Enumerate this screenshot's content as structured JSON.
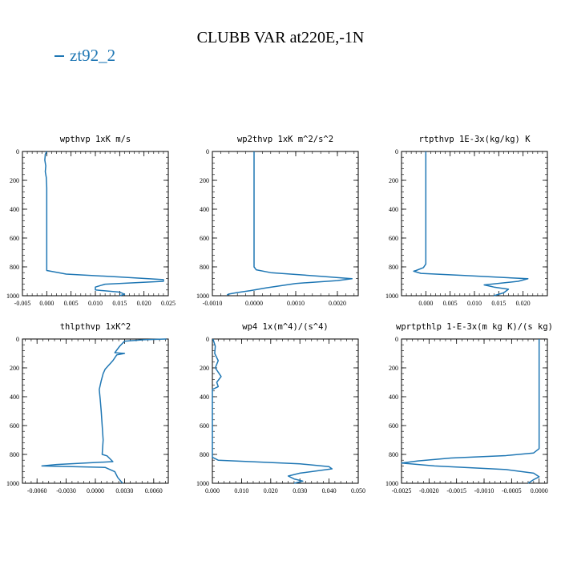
{
  "title": "CLUBB VAR at220E,-1N",
  "legend": {
    "label": "zt92_2",
    "color": "#1f77b4"
  },
  "chart_data": [
    {
      "type": "line",
      "title": "wpthvp  1xK m/s",
      "xlim": [
        -0.005,
        0.025
      ],
      "ylim": [
        1000,
        0
      ],
      "xticks": [
        -0.005,
        0.0,
        0.005,
        0.01,
        0.015,
        0.02,
        0.025
      ],
      "xtick_labels": [
        "-0.005",
        "0.000",
        "0.005",
        "0.010",
        "0.015",
        "0.020",
        "0.025"
      ],
      "yticks": [
        0,
        200,
        400,
        600,
        800,
        1000
      ],
      "ytick_labels": [
        "0",
        "200",
        "400",
        "600",
        "800",
        "1000"
      ],
      "series": [
        {
          "name": "zt92_2",
          "points": [
            [
              0.0,
              0
            ],
            [
              -0.0003,
              20
            ],
            [
              -0.0004,
              60
            ],
            [
              -0.0002,
              100
            ],
            [
              -0.0003,
              140
            ],
            [
              -0.0001,
              180
            ],
            [
              0.0,
              250
            ],
            [
              0.0,
              400
            ],
            [
              0.0,
              600
            ],
            [
              0.0,
              800
            ],
            [
              0.0,
              825
            ],
            [
              0.004,
              850
            ],
            [
              0.015,
              870
            ],
            [
              0.024,
              888
            ],
            [
              0.024,
              900
            ],
            [
              0.012,
              920
            ],
            [
              0.01,
              940
            ],
            [
              0.01,
              960
            ],
            [
              0.015,
              975
            ],
            [
              0.016,
              990
            ],
            [
              0.015,
              1000
            ]
          ]
        }
      ]
    },
    {
      "type": "line",
      "title": "wp2thvp  1xK m^2/s^2",
      "xlim": [
        -0.001,
        0.0025
      ],
      "ylim": [
        1000,
        0
      ],
      "xticks": [
        -0.001,
        0.0,
        0.001,
        0.002
      ],
      "xtick_labels": [
        "-0.0010",
        "0.0000",
        "0.0010",
        "0.0020"
      ],
      "yticks": [
        0,
        200,
        400,
        600,
        800,
        1000
      ],
      "ytick_labels": [
        "0",
        "200",
        "400",
        "600",
        "800",
        "1000"
      ],
      "series": [
        {
          "name": "zt92_2",
          "points": [
            [
              0.0,
              0
            ],
            [
              0.0,
              200
            ],
            [
              0.0,
              400
            ],
            [
              0.0,
              600
            ],
            [
              0.0,
              800
            ],
            [
              5e-05,
              820
            ],
            [
              0.0004,
              840
            ],
            [
              0.0016,
              865
            ],
            [
              0.00235,
              882
            ],
            [
              0.002,
              895
            ],
            [
              0.001,
              915
            ],
            [
              0.0003,
              945
            ],
            [
              -0.0001,
              965
            ],
            [
              -0.0004,
              978
            ],
            [
              -0.0006,
              988
            ],
            [
              -0.00065,
              995
            ]
          ]
        }
      ]
    },
    {
      "type": "line",
      "title": "rtpthvp  1E-3x(kg/kg) K",
      "xlim": [
        -0.005,
        0.025
      ],
      "ylim": [
        1000,
        0
      ],
      "xticks": [
        -0.005,
        0.0,
        0.005,
        0.01,
        0.015,
        0.02
      ],
      "xtick_labels": [
        "",
        "0.000",
        "0.005",
        "0.010",
        "0.015",
        "0.020"
      ],
      "yticks": [
        0,
        200,
        400,
        600,
        800,
        1000
      ],
      "ytick_labels": [
        "0",
        "200",
        "400",
        "600",
        "800",
        "1000"
      ],
      "series": [
        {
          "name": "zt92_2",
          "points": [
            [
              0.0,
              0
            ],
            [
              0.0,
              200
            ],
            [
              0.0,
              400
            ],
            [
              0.0,
              600
            ],
            [
              0.0,
              780
            ],
            [
              -0.0005,
              805
            ],
            [
              -0.002,
              825
            ],
            [
              -0.0025,
              830
            ],
            [
              -0.001,
              845
            ],
            [
              0.008,
              860
            ],
            [
              0.021,
              882
            ],
            [
              0.019,
              900
            ],
            [
              0.012,
              925
            ],
            [
              0.014,
              940
            ],
            [
              0.017,
              955
            ],
            [
              0.016,
              980
            ],
            [
              0.014,
              1000
            ]
          ]
        }
      ]
    },
    {
      "type": "line",
      "title": "thlpthvp  1xK^2",
      "xlim": [
        -0.0075,
        0.0075
      ],
      "ylim": [
        1000,
        0
      ],
      "xticks": [
        -0.006,
        -0.003,
        0.0,
        0.003,
        0.006
      ],
      "xtick_labels": [
        "-0.0060",
        "-0.0030",
        "0.0000",
        "0.0030",
        "0.0060"
      ],
      "yticks": [
        0,
        200,
        400,
        600,
        800,
        1000
      ],
      "ytick_labels": [
        "0",
        "200",
        "400",
        "600",
        "800",
        "1000"
      ],
      "series": [
        {
          "name": "zt92_2",
          "points": [
            [
              0.0073,
              0
            ],
            [
              0.005,
              5
            ],
            [
              0.003,
              15
            ],
            [
              0.0025,
              50
            ],
            [
              0.002,
              95
            ],
            [
              0.003,
              100
            ],
            [
              0.0022,
              110
            ],
            [
              0.0018,
              150
            ],
            [
              0.001,
              210
            ],
            [
              0.0008,
              240
            ],
            [
              0.0006,
              290
            ],
            [
              0.0004,
              350
            ],
            [
              0.0005,
              420
            ],
            [
              0.0006,
              500
            ],
            [
              0.0007,
              600
            ],
            [
              0.0008,
              700
            ],
            [
              0.0007,
              800
            ],
            [
              0.0012,
              810
            ],
            [
              0.0015,
              830
            ],
            [
              0.0018,
              850
            ],
            [
              -0.004,
              870
            ],
            [
              -0.0055,
              880
            ],
            [
              0.001,
              890
            ],
            [
              0.002,
              920
            ],
            [
              0.0023,
              960
            ],
            [
              0.0028,
              1000
            ]
          ]
        }
      ]
    },
    {
      "type": "line",
      "title": "wp4  1x(m^4)/(s^4)",
      "xlim": [
        0.0,
        0.05
      ],
      "ylim": [
        1000,
        0
      ],
      "xticks": [
        0.0,
        0.01,
        0.02,
        0.03,
        0.04,
        0.05
      ],
      "xtick_labels": [
        "0.000",
        "0.010",
        "0.020",
        "0.030",
        "0.040",
        "0.050"
      ],
      "yticks": [
        0,
        200,
        400,
        600,
        800,
        1000
      ],
      "ytick_labels": [
        "0",
        "200",
        "400",
        "600",
        "800",
        "1000"
      ],
      "series": [
        {
          "name": "zt92_2",
          "points": [
            [
              0.0002,
              0
            ],
            [
              0.001,
              50
            ],
            [
              0.0008,
              100
            ],
            [
              0.002,
              150
            ],
            [
              0.001,
              200
            ],
            [
              0.003,
              260
            ],
            [
              0.0015,
              300
            ],
            [
              0.002,
              330
            ],
            [
              0.0,
              350
            ],
            [
              0.0,
              500
            ],
            [
              0.0,
              600
            ],
            [
              0.0,
              700
            ],
            [
              0.0,
              820
            ],
            [
              0.002,
              840
            ],
            [
              0.03,
              865
            ],
            [
              0.04,
              885
            ],
            [
              0.041,
              900
            ],
            [
              0.03,
              930
            ],
            [
              0.026,
              950
            ],
            [
              0.028,
              970
            ],
            [
              0.031,
              985
            ],
            [
              0.029,
              995
            ],
            [
              0.028,
              1000
            ]
          ]
        }
      ]
    },
    {
      "type": "line",
      "title": "wprtpthlp  1-E-3x(m kg K)/(s kg)",
      "xlim": [
        -0.0025,
        0.00015
      ],
      "ylim": [
        1000,
        0
      ],
      "xticks": [
        -0.0025,
        -0.002,
        -0.0015,
        -0.001,
        -0.0005,
        0.0
      ],
      "xtick_labels": [
        "-0.0025",
        "-0.0020",
        "-0.0015",
        "-0.0010",
        "-0.0005",
        "0.0000"
      ],
      "yticks": [
        0,
        200,
        400,
        600,
        800,
        1000
      ],
      "ytick_labels": [
        "0",
        "200",
        "400",
        "600",
        "800",
        "1000"
      ],
      "series": [
        {
          "name": "zt92_2",
          "points": [
            [
              0.0,
              0
            ],
            [
              0.0,
              200
            ],
            [
              0.0,
              400
            ],
            [
              0.0,
              600
            ],
            [
              0.0,
              760
            ],
            [
              -0.0001,
              790
            ],
            [
              -0.0006,
              808
            ],
            [
              -0.0016,
              825
            ],
            [
              -0.0022,
              845
            ],
            [
              -0.0025,
              860
            ],
            [
              -0.0019,
              880
            ],
            [
              -0.0006,
              905
            ],
            [
              -0.0001,
              930
            ],
            [
              0.0,
              955
            ],
            [
              -0.0001,
              975
            ],
            [
              -0.0002,
              1000
            ]
          ]
        }
      ]
    }
  ]
}
